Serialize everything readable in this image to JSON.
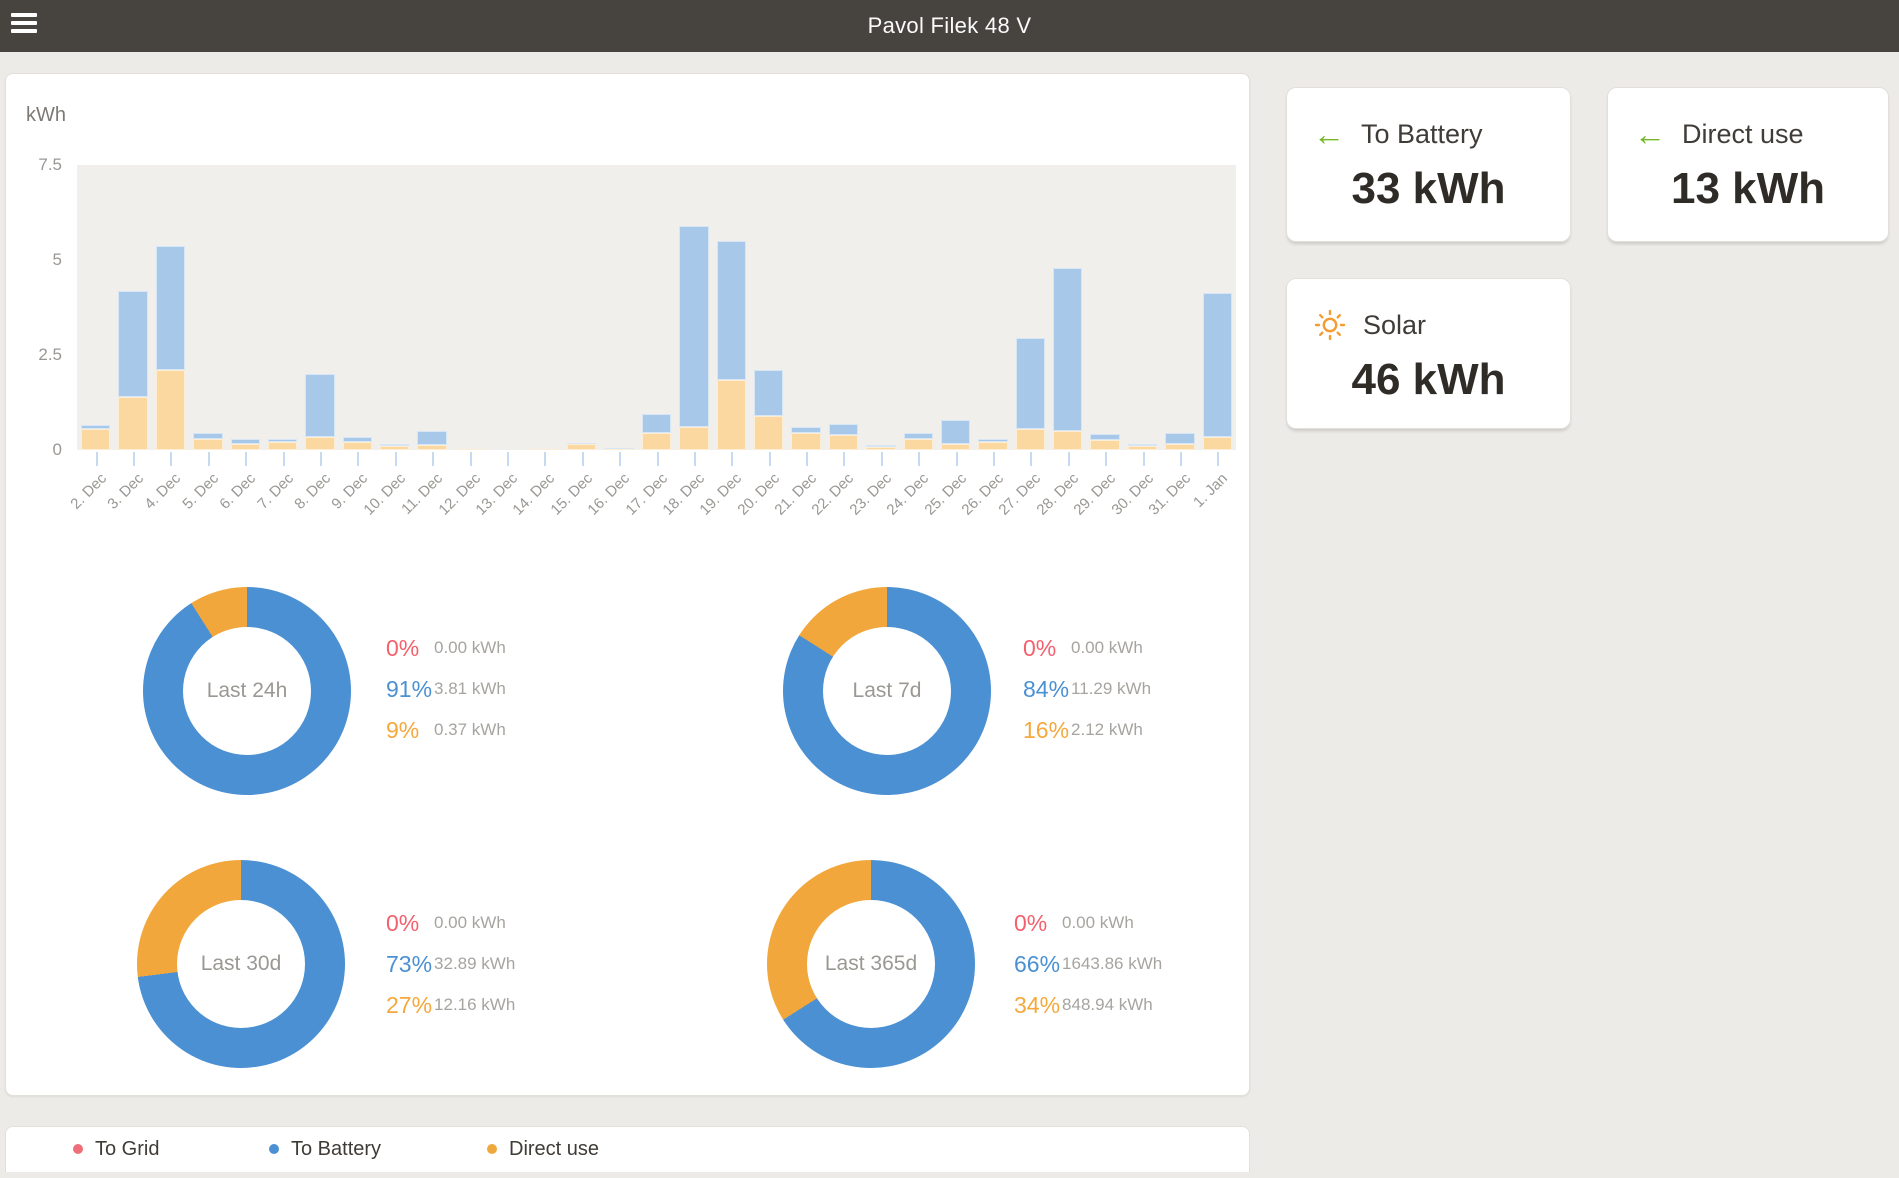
{
  "header": {
    "title": "Pavol Filek 48 V"
  },
  "colors": {
    "header_bg": "#474440",
    "page_bg": "#edebe7",
    "plot_bg": "#f0efeb",
    "bar_battery": "#a7c8e9",
    "bar_direct": "#fad8a0",
    "donut_battery": "#4a90d2",
    "donut_direct": "#f2a73d",
    "grid_red": "#f4606e",
    "arrow_green": "#76b82a",
    "sun_orange": "#f59b31",
    "tick_blue": "#c7daf0"
  },
  "chart_data": {
    "type": "bar",
    "stacked": true,
    "ylabel": "kWh",
    "ylim": [
      0,
      7.5
    ],
    "yticks": [
      "7.5",
      "5",
      "2.5",
      "0"
    ],
    "ytick_values": [
      7.5,
      5,
      2.5,
      0
    ],
    "grid": false,
    "x_tick_rotation": -45,
    "legend_position": "bottom",
    "categories": [
      "2. Dec",
      "3. Dec",
      "4. Dec",
      "5. Dec",
      "6. Dec",
      "7. Dec",
      "8. Dec",
      "9. Dec",
      "10. Dec",
      "11. Dec",
      "12. Dec",
      "13. Dec",
      "14. Dec",
      "15. Dec",
      "16. Dec",
      "17. Dec",
      "18. Dec",
      "19. Dec",
      "20. Dec",
      "21. Dec",
      "22. Dec",
      "23. Dec",
      "24. Dec",
      "25. Dec",
      "26. Dec",
      "27. Dec",
      "28. Dec",
      "29. Dec",
      "30. Dec",
      "31. Dec",
      "1. Jan"
    ],
    "series": [
      {
        "name": "Direct use",
        "color": "#fad8a0",
        "values": [
          0.55,
          1.4,
          2.1,
          0.3,
          0.15,
          0.22,
          0.35,
          0.2,
          0.1,
          0.12,
          0.02,
          0,
          0.02,
          0.15,
          0.02,
          0.45,
          0.6,
          1.85,
          0.9,
          0.45,
          0.4,
          0.08,
          0.3,
          0.15,
          0.22,
          0.55,
          0.5,
          0.25,
          0.1,
          0.15,
          0.35
        ]
      },
      {
        "name": "To Battery",
        "color": "#a7c8e9",
        "values": [
          0.1,
          2.8,
          3.25,
          0.15,
          0.12,
          0.08,
          1.65,
          0.12,
          0.05,
          0.38,
          0,
          0,
          0,
          0.03,
          0.02,
          0.5,
          5.3,
          3.65,
          1.2,
          0.15,
          0.3,
          0.04,
          0.15,
          0.63,
          0.08,
          2.4,
          4.3,
          0.15,
          0.05,
          0.3,
          3.8
        ]
      }
    ]
  },
  "donuts": [
    {
      "label": "Last 24h",
      "stats": [
        {
          "name": "To Grid",
          "pct": 0,
          "pct_label": "0%",
          "value": "0.00 kWh",
          "color": "#f4606e"
        },
        {
          "name": "To Battery",
          "pct": 91,
          "pct_label": "91%",
          "value": "3.81 kWh",
          "color": "#4a90d2"
        },
        {
          "name": "Direct use",
          "pct": 9,
          "pct_label": "9%",
          "value": "0.37 kWh",
          "color": "#f5a83c"
        }
      ]
    },
    {
      "label": "Last 7d",
      "stats": [
        {
          "name": "To Grid",
          "pct": 0,
          "pct_label": "0%",
          "value": "0.00 kWh",
          "color": "#f4606e"
        },
        {
          "name": "To Battery",
          "pct": 84,
          "pct_label": "84%",
          "value": "11.29 kWh",
          "color": "#4a90d2"
        },
        {
          "name": "Direct use",
          "pct": 16,
          "pct_label": "16%",
          "value": "2.12 kWh",
          "color": "#f5a83c"
        }
      ]
    },
    {
      "label": "Last 30d",
      "stats": [
        {
          "name": "To Grid",
          "pct": 0,
          "pct_label": "0%",
          "value": "0.00 kWh",
          "color": "#f4606e"
        },
        {
          "name": "To Battery",
          "pct": 73,
          "pct_label": "73%",
          "value": "32.89 kWh",
          "color": "#4a90d2"
        },
        {
          "name": "Direct use",
          "pct": 27,
          "pct_label": "27%",
          "value": "12.16 kWh",
          "color": "#f5a83c"
        }
      ]
    },
    {
      "label": "Last 365d",
      "stats": [
        {
          "name": "To Grid",
          "pct": 0,
          "pct_label": "0%",
          "value": "0.00 kWh",
          "color": "#f4606e"
        },
        {
          "name": "To Battery",
          "pct": 66,
          "pct_label": "66%",
          "value": "1643.86 kWh",
          "color": "#4a90d2"
        },
        {
          "name": "Direct use",
          "pct": 34,
          "pct_label": "34%",
          "value": "848.94 kWh",
          "color": "#f5a83c"
        }
      ]
    }
  ],
  "summary_cards": [
    {
      "icon": "arrow-left-icon",
      "label": "To Battery",
      "value": "33 kWh"
    },
    {
      "icon": "arrow-left-icon",
      "label": "Direct use",
      "value": "13 kWh"
    },
    {
      "icon": "sun-icon",
      "label": "Solar",
      "value": "46 kWh"
    }
  ],
  "legend": [
    {
      "label": "To Grid",
      "color": "#ee6e79"
    },
    {
      "label": "To Battery",
      "color": "#4a90d2"
    },
    {
      "label": "Direct use",
      "color": "#f0a73e"
    }
  ]
}
